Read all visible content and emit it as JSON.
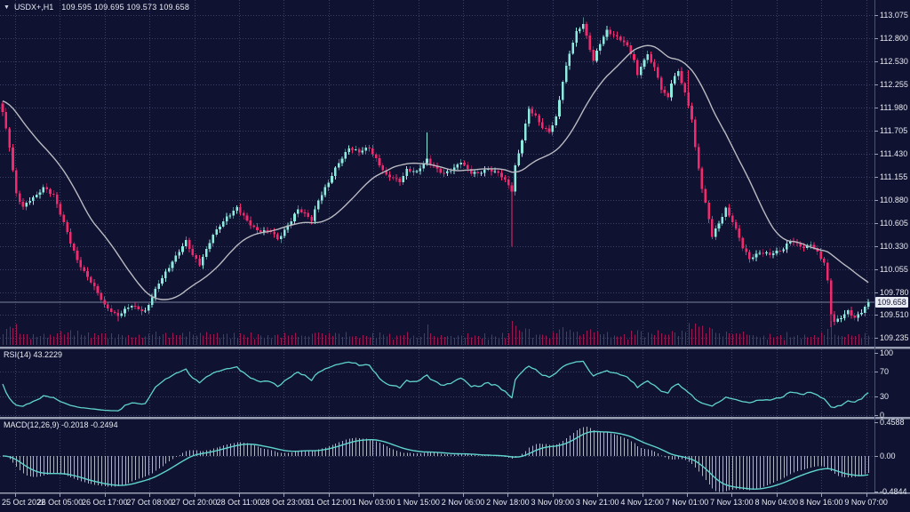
{
  "header": {
    "collapse_icon": "▼",
    "symbol_period": "USDX+,H1",
    "ohlc": "109.595 109.695 109.573 109.658"
  },
  "colors": {
    "background": "#0f1331",
    "grid": "#3a4063",
    "bull_candle": "#8ee9de",
    "bear_candle": "#f2296d",
    "volume": "#9c1650",
    "ma_line": "#b9bac2",
    "indicator_line": "#5fd3cc",
    "macd_histogram": "#aeb3c2",
    "separator": "#999fb3",
    "axis_border": "#4a5170",
    "axis_text": "#e8eaf2",
    "price_line": "#7b829b",
    "price_tag_bg": "#e9ebf2",
    "price_tag_text": "#101331"
  },
  "price_axis": {
    "labels": [
      "113.075",
      "112.800",
      "112.530",
      "112.255",
      "111.980",
      "111.705",
      "111.430",
      "111.155",
      "110.880",
      "110.605",
      "110.330",
      "110.055",
      "109.780",
      "109.510",
      "109.235"
    ],
    "current_price": "109.658"
  },
  "time_axis": {
    "labels": [
      "25 Oct 2022",
      "26 Oct 05:00",
      "26 Oct 17:00",
      "27 Oct 08:00",
      "27 Oct 20:00",
      "28 Oct 11:00",
      "28 Oct 23:00",
      "31 Oct 12:00",
      "1 Nov 03:00",
      "1 Nov 15:00",
      "2 Nov 06:00",
      "2 Nov 18:00",
      "3 Nov 09:00",
      "3 Nov 21:00",
      "4 Nov 12:00",
      "7 Nov 01:00",
      "7 Nov 13:00",
      "8 Nov 04:00",
      "8 Nov 16:00",
      "9 Nov 07:00"
    ]
  },
  "rsi_panel": {
    "label": "RSI(14) 43.2229",
    "axis_labels": [
      "100",
      "70",
      "30",
      "0"
    ],
    "axis_values": [
      100,
      70,
      30,
      0
    ],
    "level_lines": [
      70,
      30,
      0
    ]
  },
  "macd_panel": {
    "label": "MACD(12,26,9) -0.2018 -0.2494",
    "axis_labels": [
      "0.4588",
      "0.00",
      "-0.4844"
    ],
    "axis_values": [
      0.4588,
      0,
      -0.4844
    ]
  },
  "chart_data": {
    "type": "candlestick",
    "symbol": "USDX+",
    "timeframe": "H1",
    "title": "USDX+,H1",
    "current_bar": {
      "open": 109.595,
      "high": 109.695,
      "low": 109.573,
      "close": 109.658
    },
    "bars": 256,
    "price_ticks": [
      113.075,
      112.8,
      112.53,
      112.255,
      111.98,
      111.705,
      111.43,
      111.155,
      110.88,
      110.605,
      110.33,
      110.055,
      109.78,
      109.51,
      109.235
    ],
    "ylim": [
      109.1,
      113.25
    ],
    "x_range": [
      "25 Oct 2022",
      "9 Nov 2022 07:00"
    ],
    "close_anchors": [
      [
        0,
        111.92
      ],
      [
        2,
        111.5
      ],
      [
        4,
        110.94
      ],
      [
        6,
        110.8
      ],
      [
        8,
        110.88
      ],
      [
        10,
        110.92
      ],
      [
        12,
        111.02
      ],
      [
        15,
        110.94
      ],
      [
        18,
        110.6
      ],
      [
        20,
        110.36
      ],
      [
        22,
        110.16
      ],
      [
        26,
        109.9
      ],
      [
        30,
        109.62
      ],
      [
        34,
        109.5
      ],
      [
        38,
        109.62
      ],
      [
        42,
        109.55
      ],
      [
        46,
        109.88
      ],
      [
        50,
        110.15
      ],
      [
        54,
        110.38
      ],
      [
        56,
        110.22
      ],
      [
        58,
        110.12
      ],
      [
        62,
        110.45
      ],
      [
        66,
        110.68
      ],
      [
        69,
        110.78
      ],
      [
        72,
        110.62
      ],
      [
        75,
        110.52
      ],
      [
        79,
        110.5
      ],
      [
        81,
        110.4
      ],
      [
        84,
        110.58
      ],
      [
        87,
        110.76
      ],
      [
        91,
        110.64
      ],
      [
        93,
        110.88
      ],
      [
        96,
        111.08
      ],
      [
        99,
        111.32
      ],
      [
        102,
        111.5
      ],
      [
        105,
        111.44
      ],
      [
        108,
        111.5
      ],
      [
        111,
        111.3
      ],
      [
        113,
        111.16
      ],
      [
        117,
        111.1
      ],
      [
        119,
        111.24
      ],
      [
        122,
        111.2
      ],
      [
        125,
        111.36
      ],
      [
        127,
        111.28
      ],
      [
        130,
        111.18
      ],
      [
        133,
        111.25
      ],
      [
        135,
        111.34
      ],
      [
        138,
        111.2
      ],
      [
        140,
        111.18
      ],
      [
        143,
        111.25
      ],
      [
        146,
        111.2
      ],
      [
        148,
        111.1
      ],
      [
        150,
        110.98
      ],
      [
        151,
        111.28
      ],
      [
        153,
        111.6
      ],
      [
        155,
        111.96
      ],
      [
        157,
        111.86
      ],
      [
        159,
        111.74
      ],
      [
        161,
        111.7
      ],
      [
        163,
        111.86
      ],
      [
        165,
        112.28
      ],
      [
        167,
        112.62
      ],
      [
        169,
        112.88
      ],
      [
        171,
        112.98
      ],
      [
        172,
        112.82
      ],
      [
        174,
        112.52
      ],
      [
        176,
        112.74
      ],
      [
        178,
        112.9
      ],
      [
        180,
        112.84
      ],
      [
        182,
        112.78
      ],
      [
        184,
        112.7
      ],
      [
        186,
        112.54
      ],
      [
        187,
        112.36
      ],
      [
        188,
        112.48
      ],
      [
        190,
        112.6
      ],
      [
        192,
        112.44
      ],
      [
        194,
        112.2
      ],
      [
        196,
        112.1
      ],
      [
        197,
        112.28
      ],
      [
        199,
        112.4
      ],
      [
        201,
        112.14
      ],
      [
        203,
        111.85
      ],
      [
        204,
        111.5
      ],
      [
        206,
        111.02
      ],
      [
        208,
        110.64
      ],
      [
        209,
        110.44
      ],
      [
        211,
        110.6
      ],
      [
        213,
        110.78
      ],
      [
        215,
        110.62
      ],
      [
        217,
        110.42
      ],
      [
        218,
        110.3
      ],
      [
        220,
        110.18
      ],
      [
        223,
        110.26
      ],
      [
        226,
        110.22
      ],
      [
        228,
        110.26
      ],
      [
        230,
        110.3
      ],
      [
        232,
        110.4
      ],
      [
        234,
        110.34
      ],
      [
        236,
        110.3
      ],
      [
        238,
        110.36
      ],
      [
        240,
        110.26
      ],
      [
        242,
        110.12
      ],
      [
        243,
        109.9
      ],
      [
        244,
        109.52
      ],
      [
        245,
        109.42
      ],
      [
        246,
        109.46
      ],
      [
        248,
        109.52
      ],
      [
        249,
        109.56
      ],
      [
        251,
        109.46
      ],
      [
        253,
        109.54
      ],
      [
        254,
        109.6
      ],
      [
        255,
        109.658
      ]
    ],
    "special_wicks": [
      {
        "i": 34,
        "low": 109.43
      },
      {
        "i": 125,
        "high": 111.68
      },
      {
        "i": 150,
        "low": 110.32
      },
      {
        "i": 171,
        "high": 113.05
      },
      {
        "i": 202,
        "high": 112.42
      },
      {
        "i": 244,
        "low": 109.36
      },
      {
        "i": 255,
        "high": 109.695,
        "low": 109.573
      }
    ],
    "first_open": 112.02,
    "ma": {
      "type": "SMA",
      "period": 24
    },
    "rsi": {
      "period": 14,
      "current": 43.2229,
      "range": [
        0,
        100
      ],
      "levels": [
        70,
        30
      ]
    },
    "macd": {
      "fast": 12,
      "slow": 26,
      "signal": 9,
      "current_macd": -0.2018,
      "current_signal": -0.2494,
      "scale_max": 0.4588,
      "scale_min": -0.4844
    },
    "legend_position": "none",
    "grid": "dotted"
  }
}
